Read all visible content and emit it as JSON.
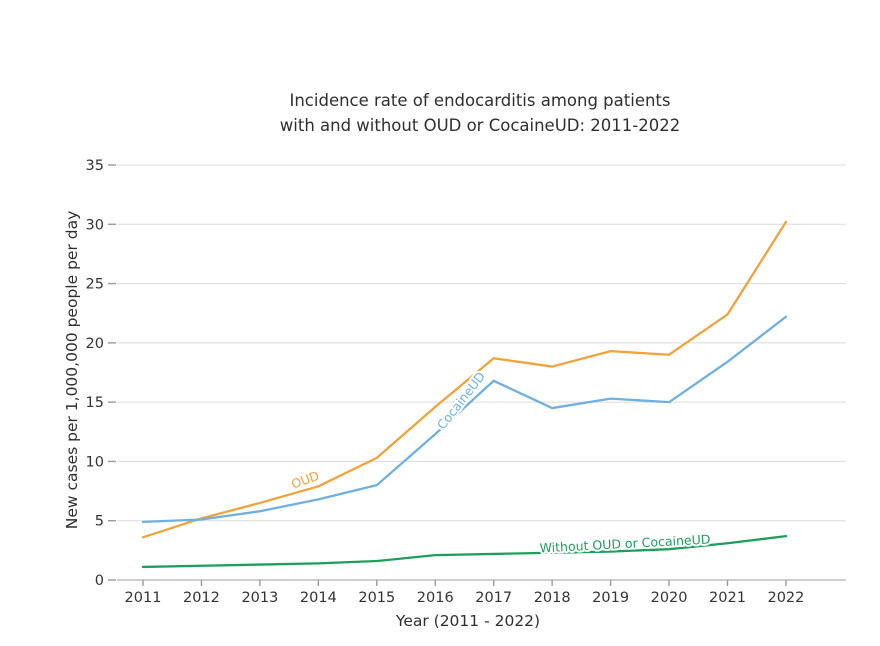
{
  "page": {
    "background": "#ffffff"
  },
  "chart": {
    "title_lines": [
      "Incidence rate of endocarditis among patients",
      "with and without OUD or CocaineUD: 2011-2022"
    ],
    "x_axis_title": "Year (2011 - 2022)",
    "y_axis_title": "New cases per 1,000,000 people per day"
  },
  "chart_data": {
    "type": "line",
    "title": "Incidence rate of endocarditis among patients with and without OUD or CocaineUD: 2011-2022",
    "xlabel": "Year (2011 - 2022)",
    "ylabel": "New cases per 1,000,000 people per day",
    "x": [
      2011,
      2012,
      2013,
      2014,
      2015,
      2016,
      2017,
      2018,
      2019,
      2020,
      2021,
      2022
    ],
    "ylim": [
      0,
      35
    ],
    "yticks": [
      0,
      5,
      10,
      15,
      20,
      25,
      30,
      35
    ],
    "grid": true,
    "legend_position": "inline-line-labels",
    "grid_color": "#dcdcdc",
    "axis_line_color": "#bdbdbd",
    "tick_mark_color": "#9a9a9a",
    "tick_text_color": "#333333",
    "series": [
      {
        "name": "OUD",
        "color": "#f0a23c",
        "values": [
          3.6,
          5.2,
          6.5,
          7.9,
          10.3,
          14.6,
          18.7,
          18.0,
          19.3,
          19.0,
          22.4,
          30.2
        ],
        "label": {
          "x": 2013.8,
          "y": 8.1,
          "angle": -20
        }
      },
      {
        "name": "CocaineUD",
        "color": "#6fb0e0",
        "values": [
          4.9,
          5.1,
          5.8,
          6.8,
          8.0,
          12.3,
          16.8,
          14.5,
          15.3,
          15.0,
          18.4,
          22.2
        ],
        "label": {
          "x": 2016.5,
          "y": 14.9,
          "angle": -52
        }
      },
      {
        "name": "Without OUD or CocaineUD",
        "color": "#1f9d5f",
        "values": [
          1.1,
          1.2,
          1.3,
          1.4,
          1.6,
          2.1,
          2.2,
          2.3,
          2.4,
          2.6,
          3.1,
          3.7
        ],
        "label": {
          "x": 2019.25,
          "y": 2.7,
          "angle": -3
        }
      }
    ]
  }
}
